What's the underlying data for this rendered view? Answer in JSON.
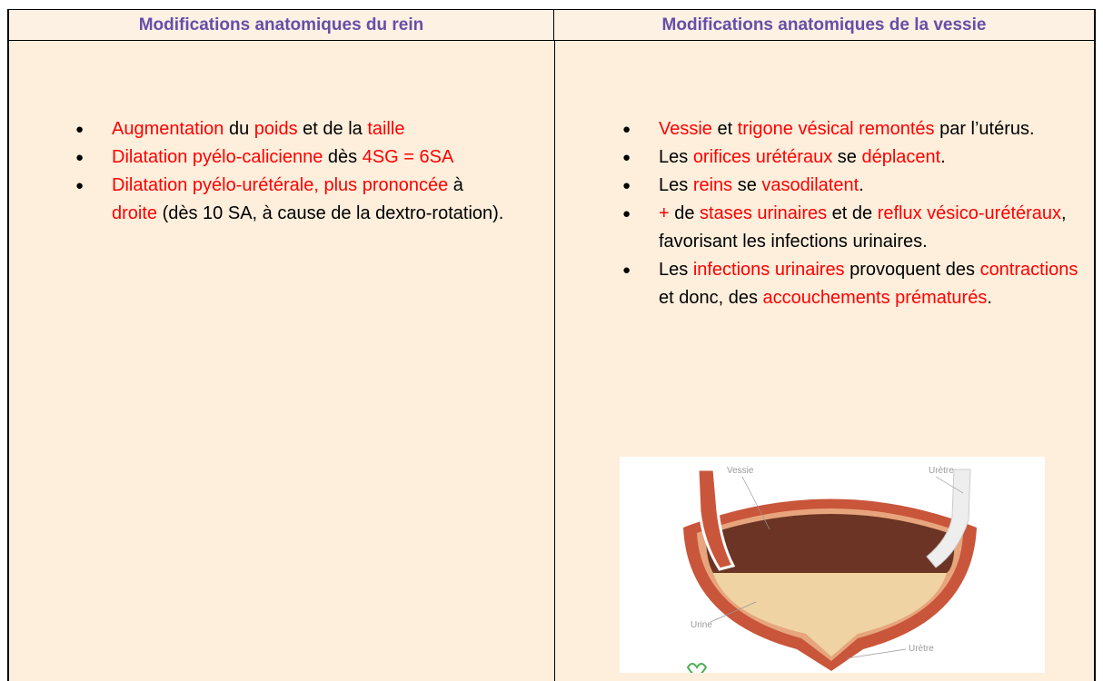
{
  "table": {
    "header": [
      "Modifications anatomiques du rein",
      "Modifications anatomiques de la vessie"
    ],
    "rows": [
      {
        "cells": [
          {
            "items": [
              {
                "runs": [
                  {
                    "text": "Augmentation",
                    "color": "#ff0000"
                  },
                  {
                    "text": " du ",
                    "color": "#000000"
                  },
                  {
                    "text": "poids",
                    "color": "#ff0000"
                  },
                  {
                    "text": " et de la ",
                    "color": "#000000"
                  },
                  {
                    "text": "taille",
                    "color": "#ff0000"
                  }
                ]
              },
              {
                "runs": [
                  {
                    "text": "Dilatation pyélo-calicienne",
                    "color": "#ff0000"
                  },
                  {
                    "text": " dès ",
                    "color": "#000000"
                  },
                  {
                    "text": "4SG = 6SA",
                    "color": "#ff0000"
                  }
                ]
              },
              {
                "runs": [
                  {
                    "text": "Dilatation pyélo-urétérale, plus prononcée",
                    "color": "#ff0000"
                  },
                  {
                    "text": " à ",
                    "color": "#000000"
                  },
                  {
                    "text": "droite",
                    "color": "#ff0000"
                  },
                  {
                    "text": " (dès 10 SA, à cause de la dextro-rotation).",
                    "color": "#000000"
                  }
                ]
              }
            ]
          },
          {
            "items": [
              {
                "runs": [
                  {
                    "text": "Vessie",
                    "color": "#ff0000"
                  },
                  {
                    "text": " et ",
                    "color": "#000000"
                  },
                  {
                    "text": "trigone vésical remontés",
                    "color": "#ff0000"
                  },
                  {
                    "text": " par l’utérus.",
                    "color": "#000000"
                  }
                ]
              },
              {
                "runs": [
                  {
                    "text": "Les ",
                    "color": "#000000"
                  },
                  {
                    "text": "orifices urétéraux",
                    "color": "#ff0000"
                  },
                  {
                    "text": " se ",
                    "color": "#000000"
                  },
                  {
                    "text": "déplacent",
                    "color": "#ff0000"
                  },
                  {
                    "text": ".",
                    "color": "#000000"
                  }
                ]
              },
              {
                "runs": [
                  {
                    "text": "Les ",
                    "color": "#000000"
                  },
                  {
                    "text": "reins",
                    "color": "#ff0000"
                  },
                  {
                    "text": " se ",
                    "color": "#000000"
                  },
                  {
                    "text": "vasodilatent",
                    "color": "#ff0000"
                  },
                  {
                    "text": ".",
                    "color": "#000000"
                  }
                ]
              },
              {
                "runs": [
                  {
                    "text": "+",
                    "color": "#ff0000"
                  },
                  {
                    "text": " de ",
                    "color": "#000000"
                  },
                  {
                    "text": "stases urinaires",
                    "color": "#ff0000"
                  },
                  {
                    "text": " et de ",
                    "color": "#000000"
                  },
                  {
                    "text": "reflux vésico-urétéraux",
                    "color": "#ff0000"
                  },
                  {
                    "text": ", favorisant les infections urinaires.",
                    "color": "#000000"
                  }
                ]
              },
              {
                "runs": [
                  {
                    "text": "Les ",
                    "color": "#000000"
                  },
                  {
                    "text": "infections urinaires",
                    "color": "#ff0000"
                  },
                  {
                    "text": " provoquent des ",
                    "color": "#000000"
                  },
                  {
                    "text": "contractions",
                    "color": "#ff0000"
                  },
                  {
                    "text": " et donc, des ",
                    "color": "#000000"
                  },
                  {
                    "text": "accouchements prématurés",
                    "color": "#ff0000"
                  },
                  {
                    "text": ".",
                    "color": "#000000"
                  }
                ]
              }
            ],
            "figure": {
              "labels": [
                "Vessie",
                "Urètre",
                "Urine",
                "Urètre"
              ]
            }
          }
        ]
      }
    ]
  }
}
